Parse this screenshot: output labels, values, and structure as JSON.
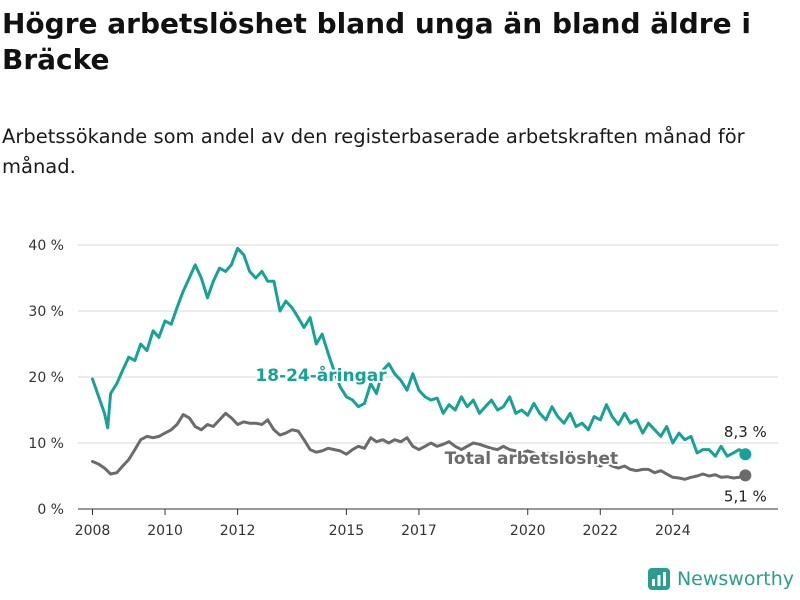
{
  "title": "Högre arbetslöshet bland unga än bland äldre i Bräcke",
  "subtitle": "Arbetssökande som andel av den registerbaserade arbetskraften månad för månad.",
  "brand": {
    "name": "Newsworthy",
    "icon": "bar-chart-logo-icon",
    "color": "#2a9d8f"
  },
  "chart_data": {
    "type": "line",
    "x_unit": "year",
    "ylim": [
      0,
      40
    ],
    "y_ticks": [
      0,
      10,
      20,
      30,
      40
    ],
    "y_tick_labels": [
      "0 %",
      "10 %",
      "20 %",
      "30 %",
      "40 %"
    ],
    "x_ticks": [
      2008,
      2010,
      2012,
      2015,
      2017,
      2020,
      2022,
      2024
    ],
    "x_tick_labels": [
      "2008",
      "2010",
      "2012",
      "2015",
      "2017",
      "2020",
      "2022",
      "2024"
    ],
    "grid": true,
    "series": [
      {
        "name": "18-24-åringar",
        "color": "#16a396",
        "end_label": "8,3 %",
        "points": [
          [
            2008.0,
            19.7
          ],
          [
            2008.17,
            17.0
          ],
          [
            2008.33,
            14.5
          ],
          [
            2008.42,
            12.3
          ],
          [
            2008.5,
            17.5
          ],
          [
            2008.67,
            19.0
          ],
          [
            2008.83,
            21.0
          ],
          [
            2009.0,
            23.0
          ],
          [
            2009.17,
            22.5
          ],
          [
            2009.33,
            25.0
          ],
          [
            2009.5,
            24.0
          ],
          [
            2009.67,
            27.0
          ],
          [
            2009.83,
            26.0
          ],
          [
            2010.0,
            28.5
          ],
          [
            2010.17,
            28.0
          ],
          [
            2010.33,
            30.5
          ],
          [
            2010.5,
            33.0
          ],
          [
            2010.67,
            35.0
          ],
          [
            2010.83,
            37.0
          ],
          [
            2011.0,
            35.0
          ],
          [
            2011.17,
            32.0
          ],
          [
            2011.33,
            34.5
          ],
          [
            2011.5,
            36.5
          ],
          [
            2011.67,
            36.0
          ],
          [
            2011.83,
            37.0
          ],
          [
            2012.0,
            39.5
          ],
          [
            2012.17,
            38.5
          ],
          [
            2012.33,
            36.0
          ],
          [
            2012.5,
            35.0
          ],
          [
            2012.67,
            36.0
          ],
          [
            2012.83,
            34.5
          ],
          [
            2013.0,
            34.5
          ],
          [
            2013.17,
            30.0
          ],
          [
            2013.33,
            31.5
          ],
          [
            2013.5,
            30.5
          ],
          [
            2013.67,
            29.0
          ],
          [
            2013.83,
            27.5
          ],
          [
            2014.0,
            29.0
          ],
          [
            2014.17,
            25.0
          ],
          [
            2014.33,
            26.5
          ],
          [
            2014.5,
            23.5
          ],
          [
            2014.67,
            20.8
          ],
          [
            2014.83,
            18.5
          ],
          [
            2015.0,
            17.0
          ],
          [
            2015.17,
            16.5
          ],
          [
            2015.33,
            15.5
          ],
          [
            2015.5,
            16.0
          ],
          [
            2015.67,
            19.0
          ],
          [
            2015.83,
            17.5
          ],
          [
            2016.0,
            21.0
          ],
          [
            2016.17,
            22.0
          ],
          [
            2016.33,
            20.5
          ],
          [
            2016.5,
            19.5
          ],
          [
            2016.67,
            18.0
          ],
          [
            2016.83,
            20.5
          ],
          [
            2017.0,
            18.0
          ],
          [
            2017.17,
            17.0
          ],
          [
            2017.33,
            16.5
          ],
          [
            2017.5,
            16.8
          ],
          [
            2017.67,
            14.5
          ],
          [
            2017.83,
            15.8
          ],
          [
            2018.0,
            15.0
          ],
          [
            2018.17,
            17.0
          ],
          [
            2018.33,
            15.5
          ],
          [
            2018.5,
            16.5
          ],
          [
            2018.67,
            14.5
          ],
          [
            2018.83,
            15.5
          ],
          [
            2019.0,
            16.5
          ],
          [
            2019.17,
            15.0
          ],
          [
            2019.33,
            15.5
          ],
          [
            2019.5,
            17.0
          ],
          [
            2019.67,
            14.5
          ],
          [
            2019.83,
            15.0
          ],
          [
            2020.0,
            14.2
          ],
          [
            2020.17,
            16.0
          ],
          [
            2020.33,
            14.5
          ],
          [
            2020.5,
            13.5
          ],
          [
            2020.67,
            15.5
          ],
          [
            2020.83,
            14.0
          ],
          [
            2021.0,
            13.0
          ],
          [
            2021.17,
            14.5
          ],
          [
            2021.33,
            12.5
          ],
          [
            2021.5,
            13.0
          ],
          [
            2021.67,
            12.0
          ],
          [
            2021.83,
            14.0
          ],
          [
            2022.0,
            13.5
          ],
          [
            2022.17,
            15.8
          ],
          [
            2022.33,
            14.0
          ],
          [
            2022.5,
            12.8
          ],
          [
            2022.67,
            14.5
          ],
          [
            2022.83,
            13.0
          ],
          [
            2023.0,
            13.5
          ],
          [
            2023.17,
            11.5
          ],
          [
            2023.33,
            13.0
          ],
          [
            2023.5,
            12.0
          ],
          [
            2023.67,
            11.0
          ],
          [
            2023.83,
            12.5
          ],
          [
            2024.0,
            10.0
          ],
          [
            2024.17,
            11.5
          ],
          [
            2024.33,
            10.5
          ],
          [
            2024.5,
            11.0
          ],
          [
            2024.67,
            8.5
          ],
          [
            2024.83,
            9.0
          ],
          [
            2025.0,
            9.0
          ],
          [
            2025.17,
            8.0
          ],
          [
            2025.33,
            9.5
          ],
          [
            2025.5,
            8.0
          ],
          [
            2025.67,
            8.5
          ],
          [
            2025.83,
            9.0
          ],
          [
            2026.0,
            8.3
          ]
        ]
      },
      {
        "name": "Total arbetslöshet",
        "color": "#6b6b6e",
        "end_label": "5,1 %",
        "points": [
          [
            2008.0,
            7.2
          ],
          [
            2008.17,
            6.8
          ],
          [
            2008.33,
            6.2
          ],
          [
            2008.5,
            5.3
          ],
          [
            2008.67,
            5.5
          ],
          [
            2008.83,
            6.5
          ],
          [
            2009.0,
            7.5
          ],
          [
            2009.17,
            9.0
          ],
          [
            2009.33,
            10.5
          ],
          [
            2009.5,
            11.0
          ],
          [
            2009.67,
            10.8
          ],
          [
            2009.83,
            11.0
          ],
          [
            2010.0,
            11.5
          ],
          [
            2010.17,
            12.0
          ],
          [
            2010.33,
            12.8
          ],
          [
            2010.5,
            14.3
          ],
          [
            2010.67,
            13.8
          ],
          [
            2010.83,
            12.5
          ],
          [
            2011.0,
            12.0
          ],
          [
            2011.17,
            12.8
          ],
          [
            2011.33,
            12.5
          ],
          [
            2011.5,
            13.5
          ],
          [
            2011.67,
            14.5
          ],
          [
            2011.83,
            13.8
          ],
          [
            2012.0,
            12.8
          ],
          [
            2012.17,
            13.2
          ],
          [
            2012.33,
            13.0
          ],
          [
            2012.5,
            13.0
          ],
          [
            2012.67,
            12.8
          ],
          [
            2012.83,
            13.5
          ],
          [
            2013.0,
            12.0
          ],
          [
            2013.17,
            11.2
          ],
          [
            2013.33,
            11.5
          ],
          [
            2013.5,
            12.0
          ],
          [
            2013.67,
            11.8
          ],
          [
            2013.83,
            10.5
          ],
          [
            2014.0,
            9.0
          ],
          [
            2014.17,
            8.6
          ],
          [
            2014.33,
            8.8
          ],
          [
            2014.5,
            9.2
          ],
          [
            2014.67,
            9.0
          ],
          [
            2014.83,
            8.8
          ],
          [
            2015.0,
            8.3
          ],
          [
            2015.17,
            9.0
          ],
          [
            2015.33,
            9.5
          ],
          [
            2015.5,
            9.2
          ],
          [
            2015.67,
            10.8
          ],
          [
            2015.83,
            10.2
          ],
          [
            2016.0,
            10.5
          ],
          [
            2016.17,
            10.0
          ],
          [
            2016.33,
            10.5
          ],
          [
            2016.5,
            10.2
          ],
          [
            2016.67,
            10.8
          ],
          [
            2016.83,
            9.5
          ],
          [
            2017.0,
            9.0
          ],
          [
            2017.17,
            9.5
          ],
          [
            2017.33,
            10.0
          ],
          [
            2017.5,
            9.5
          ],
          [
            2017.67,
            9.8
          ],
          [
            2017.83,
            10.2
          ],
          [
            2018.0,
            9.5
          ],
          [
            2018.17,
            9.0
          ],
          [
            2018.33,
            9.5
          ],
          [
            2018.5,
            10.0
          ],
          [
            2018.67,
            9.8
          ],
          [
            2018.83,
            9.5
          ],
          [
            2019.0,
            9.2
          ],
          [
            2019.17,
            9.0
          ],
          [
            2019.33,
            9.5
          ],
          [
            2019.5,
            9.0
          ],
          [
            2019.67,
            8.8
          ],
          [
            2019.83,
            8.5
          ],
          [
            2020.0,
            8.8
          ],
          [
            2020.17,
            8.5
          ],
          [
            2020.33,
            8.0
          ],
          [
            2020.5,
            8.5
          ],
          [
            2020.67,
            8.2
          ],
          [
            2020.83,
            7.8
          ],
          [
            2021.0,
            7.5
          ],
          [
            2021.17,
            7.5
          ],
          [
            2021.33,
            7.2
          ],
          [
            2021.5,
            7.0
          ],
          [
            2021.67,
            7.0
          ],
          [
            2021.83,
            6.8
          ],
          [
            2022.0,
            6.5
          ],
          [
            2022.17,
            7.0
          ],
          [
            2022.33,
            6.5
          ],
          [
            2022.5,
            6.2
          ],
          [
            2022.67,
            6.5
          ],
          [
            2022.83,
            6.0
          ],
          [
            2023.0,
            5.8
          ],
          [
            2023.17,
            6.0
          ],
          [
            2023.33,
            6.0
          ],
          [
            2023.5,
            5.5
          ],
          [
            2023.67,
            5.8
          ],
          [
            2023.83,
            5.3
          ],
          [
            2024.0,
            4.8
          ],
          [
            2024.17,
            4.7
          ],
          [
            2024.33,
            4.5
          ],
          [
            2024.5,
            4.8
          ],
          [
            2024.67,
            5.0
          ],
          [
            2024.83,
            5.3
          ],
          [
            2025.0,
            5.0
          ],
          [
            2025.17,
            5.2
          ],
          [
            2025.33,
            4.8
          ],
          [
            2025.5,
            4.9
          ],
          [
            2025.67,
            4.7
          ],
          [
            2025.83,
            4.8
          ],
          [
            2026.0,
            5.1
          ]
        ]
      }
    ]
  }
}
